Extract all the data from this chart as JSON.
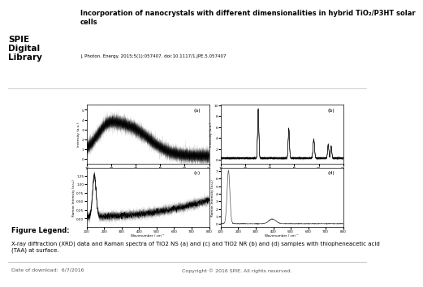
{
  "title_full": "Incorporation of nanocrystals with different dimensionalities in hybrid TiO₂/P3HT solar\ncells",
  "doi_text": "J. Photon. Energy. 2015;5(1):057407. doi:10.1117/1.JPE.5.057407",
  "spie_text": "SPIE\nDigital\nLibrary",
  "legend_title": "Figure Legend:",
  "legend_body": "X-ray diffraction (XRD) data and Raman spectra of TiO2 NS (a) and (c) and TiO2 NR (b) and (d) samples with thiopheneacetic acid\n(TAA) at surface.",
  "footer_left": "Date of download:  6/7/2016",
  "footer_right": "Copyright © 2016 SPIE. All rights reserved.",
  "bg_color": "#ffffff",
  "plot_labels": [
    "(a)",
    "(b)",
    "(c)",
    "(d)"
  ],
  "spie_red": "#cc0000"
}
